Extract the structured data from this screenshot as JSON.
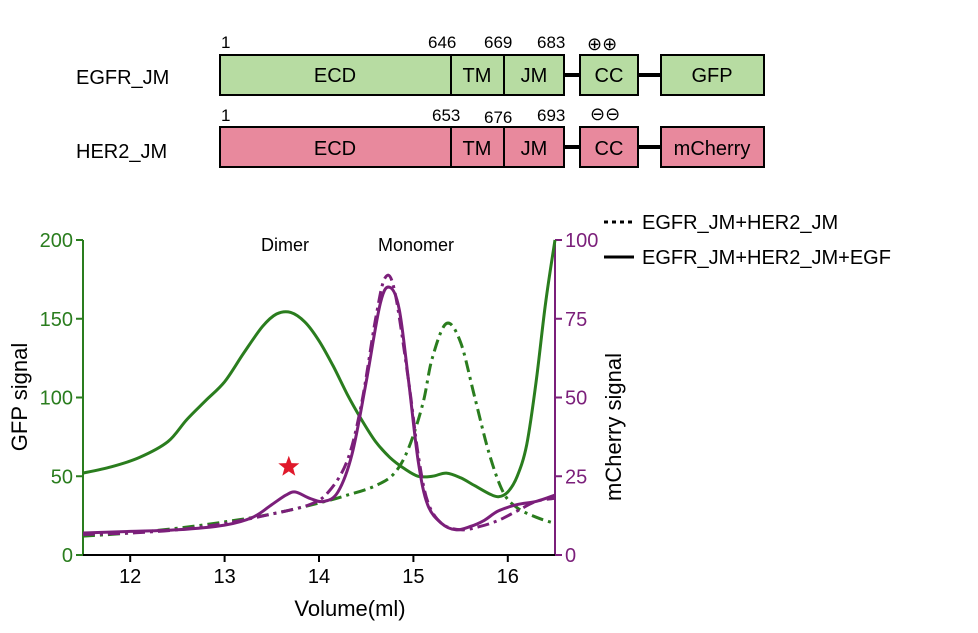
{
  "constructs": [
    {
      "name": "EGFR_JM",
      "fill": "#b7dca2",
      "domains": [
        "ECD",
        "TM",
        "JM",
        "CC",
        "GFP"
      ],
      "positions": [
        "1",
        "646",
        "669",
        "683"
      ],
      "charge": "⊕⊕"
    },
    {
      "name": "HER2_JM",
      "fill": "#e8899d",
      "domains": [
        "ECD",
        "TM",
        "JM",
        "CC",
        "mCherry"
      ],
      "positions": [
        "1",
        "653",
        "676",
        "693"
      ],
      "charge": "⊖⊖"
    }
  ],
  "chart_data": {
    "type": "line",
    "xlabel": "Volume(ml)",
    "ylabel": "GFP signal",
    "y2label": "mCherry signal",
    "xlim": [
      11.5,
      16.5
    ],
    "ylim": [
      0,
      200
    ],
    "y2lim": [
      0,
      100
    ],
    "xticks": [
      "12",
      "13",
      "14",
      "15",
      "16"
    ],
    "yticks": [
      "0",
      "50",
      "100",
      "150",
      "200"
    ],
    "y2ticks": [
      "0",
      "25",
      "50",
      "75",
      "100"
    ],
    "annotations": [
      "Dimer",
      "Monomer"
    ],
    "legend": [
      {
        "label": "EGFR_JM+HER2_JM",
        "style": "dotted"
      },
      {
        "label": "EGFR_JM+HER2_JM+EGF",
        "style": "solid"
      }
    ],
    "legend_position": "top-right",
    "colors": {
      "gfp": "#2a7d1e",
      "mcherry": "#7b1f7a",
      "star": "#e0192b"
    },
    "marker": {
      "symbol": "star",
      "x": 13.68,
      "y2": 28
    },
    "series": [
      {
        "axis": "left",
        "style": "solid",
        "color": "gfp",
        "points": [
          [
            11.5,
            52
          ],
          [
            11.8,
            56
          ],
          [
            12.1,
            62
          ],
          [
            12.4,
            72
          ],
          [
            12.6,
            86
          ],
          [
            12.8,
            98
          ],
          [
            13.0,
            110
          ],
          [
            13.2,
            128
          ],
          [
            13.4,
            145
          ],
          [
            13.55,
            153
          ],
          [
            13.7,
            154
          ],
          [
            13.85,
            148
          ],
          [
            14.0,
            136
          ],
          [
            14.15,
            120
          ],
          [
            14.3,
            102
          ],
          [
            14.45,
            86
          ],
          [
            14.6,
            72
          ],
          [
            14.75,
            62
          ],
          [
            14.9,
            55
          ],
          [
            15.05,
            50
          ],
          [
            15.2,
            50
          ],
          [
            15.35,
            52
          ],
          [
            15.5,
            49
          ],
          [
            15.65,
            44
          ],
          [
            15.8,
            39
          ],
          [
            15.9,
            37
          ],
          [
            16.0,
            40
          ],
          [
            16.1,
            50
          ],
          [
            16.2,
            70
          ],
          [
            16.3,
            110
          ],
          [
            16.4,
            160
          ],
          [
            16.5,
            200
          ]
        ]
      },
      {
        "axis": "left",
        "style": "dashdot",
        "color": "gfp",
        "points": [
          [
            11.5,
            12
          ],
          [
            12.0,
            14
          ],
          [
            12.5,
            17
          ],
          [
            13.0,
            21
          ],
          [
            13.5,
            26
          ],
          [
            14.0,
            33
          ],
          [
            14.3,
            38
          ],
          [
            14.6,
            44
          ],
          [
            14.8,
            52
          ],
          [
            14.95,
            68
          ],
          [
            15.1,
            96
          ],
          [
            15.2,
            125
          ],
          [
            15.35,
            147
          ],
          [
            15.5,
            135
          ],
          [
            15.65,
            100
          ],
          [
            15.8,
            65
          ],
          [
            15.95,
            40
          ],
          [
            16.1,
            30
          ],
          [
            16.3,
            24
          ],
          [
            16.5,
            20
          ]
        ]
      },
      {
        "axis": "right",
        "style": "solid",
        "color": "mcherry",
        "points": [
          [
            11.5,
            7
          ],
          [
            12.0,
            7.5
          ],
          [
            12.5,
            8
          ],
          [
            13.0,
            9.5
          ],
          [
            13.3,
            12
          ],
          [
            13.5,
            16
          ],
          [
            13.65,
            19
          ],
          [
            13.75,
            20
          ],
          [
            13.9,
            18
          ],
          [
            14.05,
            17
          ],
          [
            14.2,
            20
          ],
          [
            14.35,
            32
          ],
          [
            14.5,
            55
          ],
          [
            14.65,
            80
          ],
          [
            14.75,
            85
          ],
          [
            14.85,
            78
          ],
          [
            14.95,
            55
          ],
          [
            15.05,
            30
          ],
          [
            15.15,
            16
          ],
          [
            15.3,
            10
          ],
          [
            15.45,
            8
          ],
          [
            15.6,
            9
          ],
          [
            15.75,
            11
          ],
          [
            15.9,
            14
          ],
          [
            16.1,
            16
          ],
          [
            16.3,
            17
          ],
          [
            16.5,
            19
          ]
        ]
      },
      {
        "axis": "right",
        "style": "dashdot",
        "color": "mcherry",
        "points": [
          [
            11.5,
            6.5
          ],
          [
            12.0,
            7
          ],
          [
            12.5,
            8
          ],
          [
            13.0,
            10
          ],
          [
            13.5,
            13
          ],
          [
            13.9,
            16
          ],
          [
            14.1,
            20
          ],
          [
            14.3,
            30
          ],
          [
            14.45,
            48
          ],
          [
            14.6,
            75
          ],
          [
            14.7,
            88
          ],
          [
            14.8,
            84
          ],
          [
            14.95,
            55
          ],
          [
            15.05,
            32
          ],
          [
            15.15,
            17
          ],
          [
            15.3,
            10
          ],
          [
            15.5,
            8
          ],
          [
            15.7,
            9
          ],
          [
            15.9,
            11
          ],
          [
            16.1,
            14
          ],
          [
            16.3,
            17
          ],
          [
            16.5,
            18
          ]
        ]
      }
    ]
  }
}
